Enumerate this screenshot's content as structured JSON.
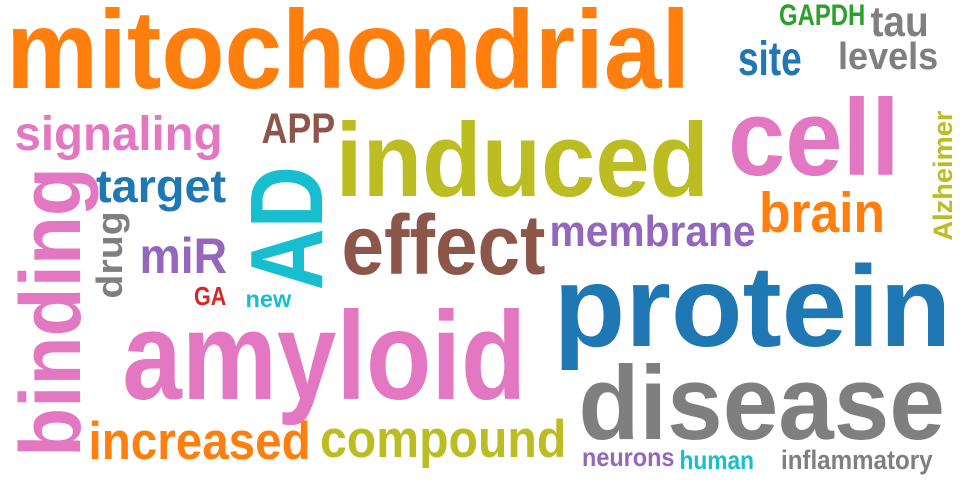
{
  "words": [
    {
      "key": "mitochondrial",
      "text": "mitochondrial",
      "color": "#ff7f0e"
    },
    {
      "key": "protein",
      "text": "protein",
      "color": "#1f77b4"
    },
    {
      "key": "amyloid",
      "text": "amyloid",
      "color": "#e377c2"
    },
    {
      "key": "disease",
      "text": "disease",
      "color": "#7f7f7f"
    },
    {
      "key": "induced",
      "text": "induced",
      "color": "#bcbd22"
    },
    {
      "key": "cell",
      "text": "cell",
      "color": "#e377c2"
    },
    {
      "key": "effect",
      "text": "effect",
      "color": "#8c564b"
    },
    {
      "key": "AD",
      "text": "AD",
      "color": "#17becf"
    },
    {
      "key": "binding",
      "text": "binding",
      "color": "#e377c2"
    },
    {
      "key": "compound",
      "text": "compound",
      "color": "#bcbd22"
    },
    {
      "key": "increased",
      "text": "increased",
      "color": "#ff7f0e"
    },
    {
      "key": "signaling",
      "text": "signaling",
      "color": "#e377c2"
    },
    {
      "key": "membrane",
      "text": "membrane",
      "color": "#9467bd"
    },
    {
      "key": "brain",
      "text": "brain",
      "color": "#ff7f0e"
    },
    {
      "key": "target",
      "text": "target",
      "color": "#1f77b4"
    },
    {
      "key": "site",
      "text": "site",
      "color": "#1f77b4"
    },
    {
      "key": "tau",
      "text": "tau",
      "color": "#7f7f7f"
    },
    {
      "key": "levels",
      "text": "levels",
      "color": "#7f7f7f"
    },
    {
      "key": "miR",
      "text": "miR",
      "color": "#9467bd"
    },
    {
      "key": "APP",
      "text": "APP",
      "color": "#8c564b"
    },
    {
      "key": "drug",
      "text": "drug",
      "color": "#7f7f7f"
    },
    {
      "key": "Alzheimer",
      "text": "Alzheimer",
      "color": "#bcbd22"
    },
    {
      "key": "GAPDH",
      "text": "GAPDH",
      "color": "#2ca02c"
    },
    {
      "key": "inflammatory",
      "text": "inflammatory",
      "color": "#7f7f7f"
    },
    {
      "key": "neurons",
      "text": "neurons",
      "color": "#9467bd"
    },
    {
      "key": "human",
      "text": "human",
      "color": "#17becf"
    },
    {
      "key": "GA",
      "text": "GA",
      "color": "#d62728"
    },
    {
      "key": "new",
      "text": "new",
      "color": "#17becf"
    }
  ]
}
